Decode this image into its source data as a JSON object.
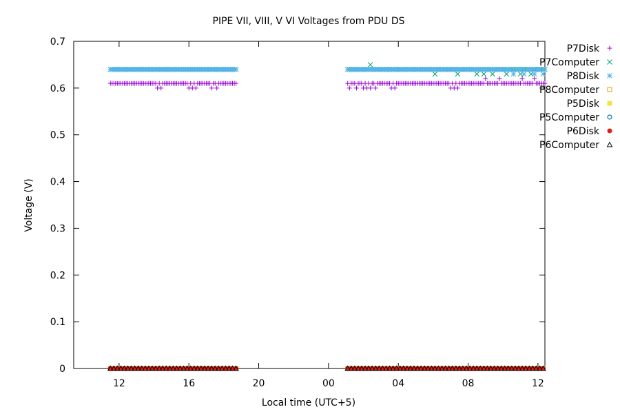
{
  "chart_data": {
    "type": "scatter",
    "title": "PIPE VII, VIII, V   VI Voltages from PDU    DS",
    "xlabel": "Local time (UTC+5)",
    "ylabel": "Voltage (V)",
    "xlim": [
      9.4,
      36.4
    ],
    "ylim": [
      0,
      0.7
    ],
    "xticks": [
      {
        "value": 12,
        "label": "12"
      },
      {
        "value": 16,
        "label": "16"
      },
      {
        "value": 20,
        "label": "20"
      },
      {
        "value": 24,
        "label": "00"
      },
      {
        "value": 28,
        "label": "04"
      },
      {
        "value": 32,
        "label": "08"
      },
      {
        "value": 36,
        "label": "12"
      }
    ],
    "yticks": [
      {
        "value": 0,
        "label": "0"
      },
      {
        "value": 0.1,
        "label": "0.1"
      },
      {
        "value": 0.2,
        "label": "0.2"
      },
      {
        "value": 0.3,
        "label": "0.3"
      },
      {
        "value": 0.4,
        "label": "0.4"
      },
      {
        "value": 0.5,
        "label": "0.5"
      },
      {
        "value": 0.6,
        "label": "0.6"
      },
      {
        "value": 0.7,
        "label": "0.7"
      }
    ],
    "legend_position": "outside-top-right",
    "series": [
      {
        "name": "P7Disk",
        "marker": "plus",
        "color": "#9400d3",
        "segments": [
          {
            "x_start": 11.5,
            "x_end": 18.7,
            "step": 0.1
          },
          {
            "x_start": 25.1,
            "x_end": 36.4,
            "step": 0.1
          }
        ],
        "base_value": 0.61,
        "deviations": [
          {
            "x": 14.2,
            "y": 0.6
          },
          {
            "x": 14.4,
            "y": 0.6
          },
          {
            "x": 16.0,
            "y": 0.6
          },
          {
            "x": 16.2,
            "y": 0.6
          },
          {
            "x": 16.4,
            "y": 0.6
          },
          {
            "x": 17.3,
            "y": 0.6
          },
          {
            "x": 17.6,
            "y": 0.6
          },
          {
            "x": 25.2,
            "y": 0.6
          },
          {
            "x": 25.6,
            "y": 0.6
          },
          {
            "x": 26.0,
            "y": 0.6
          },
          {
            "x": 26.2,
            "y": 0.6
          },
          {
            "x": 26.4,
            "y": 0.6
          },
          {
            "x": 26.7,
            "y": 0.6
          },
          {
            "x": 27.6,
            "y": 0.6
          },
          {
            "x": 27.8,
            "y": 0.6
          },
          {
            "x": 31.0,
            "y": 0.6
          },
          {
            "x": 31.2,
            "y": 0.6
          },
          {
            "x": 31.4,
            "y": 0.6
          },
          {
            "x": 33.0,
            "y": 0.62
          },
          {
            "x": 33.8,
            "y": 0.62
          },
          {
            "x": 35.1,
            "y": 0.62
          },
          {
            "x": 35.8,
            "y": 0.62
          }
        ]
      },
      {
        "name": "P7Computer",
        "marker": "cross",
        "color": "#009e73",
        "segments": [
          {
            "x_start": 11.5,
            "x_end": 18.7,
            "step": 0.1
          },
          {
            "x_start": 25.1,
            "x_end": 36.4,
            "step": 0.1
          }
        ],
        "base_value": 0.64,
        "deviations": [
          {
            "x": 26.4,
            "y": 0.65
          },
          {
            "x": 30.1,
            "y": 0.63
          },
          {
            "x": 31.4,
            "y": 0.63
          },
          {
            "x": 32.5,
            "y": 0.63
          },
          {
            "x": 32.9,
            "y": 0.63
          },
          {
            "x": 33.4,
            "y": 0.63
          },
          {
            "x": 34.2,
            "y": 0.63
          },
          {
            "x": 35.0,
            "y": 0.63
          },
          {
            "x": 35.6,
            "y": 0.63
          }
        ]
      },
      {
        "name": "P8Disk",
        "marker": "star",
        "color": "#56b4e9",
        "segments": [
          {
            "x_start": 11.5,
            "x_end": 18.7,
            "step": 0.1
          },
          {
            "x_start": 25.1,
            "x_end": 36.4,
            "step": 0.1
          }
        ],
        "base_value": 0.64,
        "deviations": [
          {
            "x": 34.6,
            "y": 0.63
          },
          {
            "x": 35.2,
            "y": 0.63
          },
          {
            "x": 35.8,
            "y": 0.63
          },
          {
            "x": 36.3,
            "y": 0.63
          }
        ]
      },
      {
        "name": "P8Computer",
        "marker": "open-square",
        "color": "#e69f00",
        "segments": [
          {
            "x_start": 11.5,
            "x_end": 18.7,
            "step": 0.2
          },
          {
            "x_start": 25.1,
            "x_end": 36.4,
            "step": 0.2
          }
        ],
        "base_value": 0,
        "deviations": []
      },
      {
        "name": "P5Disk",
        "marker": "filled-square",
        "color": "#f0e442",
        "segments": [
          {
            "x_start": 11.5,
            "x_end": 18.7,
            "step": 0.2
          },
          {
            "x_start": 25.1,
            "x_end": 36.4,
            "step": 0.2
          }
        ],
        "base_value": 0,
        "deviations": []
      },
      {
        "name": "P5Computer",
        "marker": "open-circle",
        "color": "#0072b2",
        "segments": [
          {
            "x_start": 11.5,
            "x_end": 18.7,
            "step": 0.2
          },
          {
            "x_start": 25.1,
            "x_end": 36.4,
            "step": 0.2
          }
        ],
        "base_value": 0,
        "deviations": []
      },
      {
        "name": "P6Disk",
        "marker": "filled-circle",
        "color": "#e51e10",
        "segments": [
          {
            "x_start": 11.5,
            "x_end": 18.7,
            "step": 0.2
          },
          {
            "x_start": 25.1,
            "x_end": 36.4,
            "step": 0.2
          }
        ],
        "base_value": 0,
        "deviations": []
      },
      {
        "name": "P6Computer",
        "marker": "open-triangle",
        "color": "#000000",
        "segments": [
          {
            "x_start": 11.5,
            "x_end": 18.7,
            "step": 0.2
          },
          {
            "x_start": 25.1,
            "x_end": 36.4,
            "step": 0.2
          }
        ],
        "base_value": 0,
        "deviations": []
      }
    ]
  }
}
